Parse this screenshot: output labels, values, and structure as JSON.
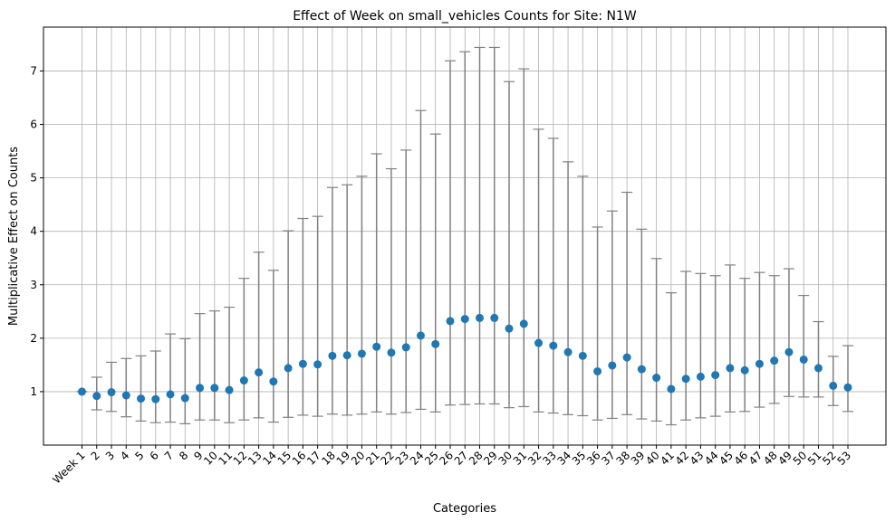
{
  "chart_data": {
    "type": "scatter",
    "title": "Effect of Week on small_vehicles Counts for Site: N1W",
    "xlabel": "Categories",
    "ylabel": "Multiplicative Effect on Counts",
    "categories": [
      "Week 1",
      "2",
      "3",
      "4",
      "5",
      "6",
      "7",
      "8",
      "9",
      "10",
      "11",
      "12",
      "13",
      "14",
      "15",
      "16",
      "17",
      "18",
      "19",
      "20",
      "21",
      "22",
      "23",
      "24",
      "25",
      "26",
      "27",
      "28",
      "29",
      "30",
      "31",
      "32",
      "33",
      "34",
      "35",
      "36",
      "37",
      "38",
      "39",
      "40",
      "41",
      "42",
      "43",
      "44",
      "45",
      "46",
      "47",
      "48",
      "49",
      "50",
      "51",
      "52",
      "53"
    ],
    "values": [
      1.0,
      0.92,
      0.99,
      0.93,
      0.87,
      0.86,
      0.95,
      0.88,
      1.07,
      1.07,
      1.03,
      1.21,
      1.36,
      1.19,
      1.44,
      1.52,
      1.51,
      1.67,
      1.68,
      1.71,
      1.84,
      1.73,
      1.83,
      2.05,
      1.89,
      2.32,
      2.36,
      2.38,
      2.38,
      2.18,
      2.27,
      1.91,
      1.86,
      1.74,
      1.67,
      1.38,
      1.49,
      1.64,
      1.42,
      1.26,
      1.05,
      1.24,
      1.28,
      1.31,
      1.44,
      1.4,
      1.52,
      1.58,
      1.74,
      1.6,
      1.44,
      1.11,
      1.08
    ],
    "lower": [
      1.0,
      0.66,
      0.63,
      0.53,
      0.45,
      0.42,
      0.43,
      0.4,
      0.47,
      0.47,
      0.42,
      0.47,
      0.51,
      0.43,
      0.52,
      0.56,
      0.54,
      0.58,
      0.56,
      0.58,
      0.62,
      0.58,
      0.61,
      0.67,
      0.62,
      0.75,
      0.76,
      0.77,
      0.77,
      0.7,
      0.72,
      0.62,
      0.6,
      0.57,
      0.55,
      0.47,
      0.5,
      0.57,
      0.49,
      0.45,
      0.38,
      0.47,
      0.51,
      0.54,
      0.62,
      0.63,
      0.71,
      0.78,
      0.91,
      0.9,
      0.9,
      0.74,
      0.63
    ],
    "upper": [
      1.0,
      1.27,
      1.55,
      1.62,
      1.67,
      1.76,
      2.08,
      1.99,
      2.46,
      2.51,
      2.58,
      3.12,
      3.61,
      3.27,
      4.01,
      4.24,
      4.28,
      4.82,
      4.87,
      5.03,
      5.45,
      5.17,
      5.52,
      6.26,
      5.82,
      7.19,
      7.36,
      7.44,
      7.44,
      6.8,
      7.04,
      5.91,
      5.74,
      5.3,
      5.03,
      4.08,
      4.38,
      4.73,
      4.04,
      3.49,
      2.85,
      3.25,
      3.21,
      3.17,
      3.37,
      3.12,
      3.23,
      3.17,
      3.3,
      2.8,
      2.31,
      1.66,
      1.86
    ],
    "ylim": [
      0.0,
      7.82
    ],
    "yticks": [
      1,
      2,
      3,
      4,
      5,
      6,
      7
    ],
    "grid": true,
    "colors": {
      "point": "#1f77b4",
      "errorbar": "#808080",
      "grid": "#b0b0b0"
    }
  }
}
